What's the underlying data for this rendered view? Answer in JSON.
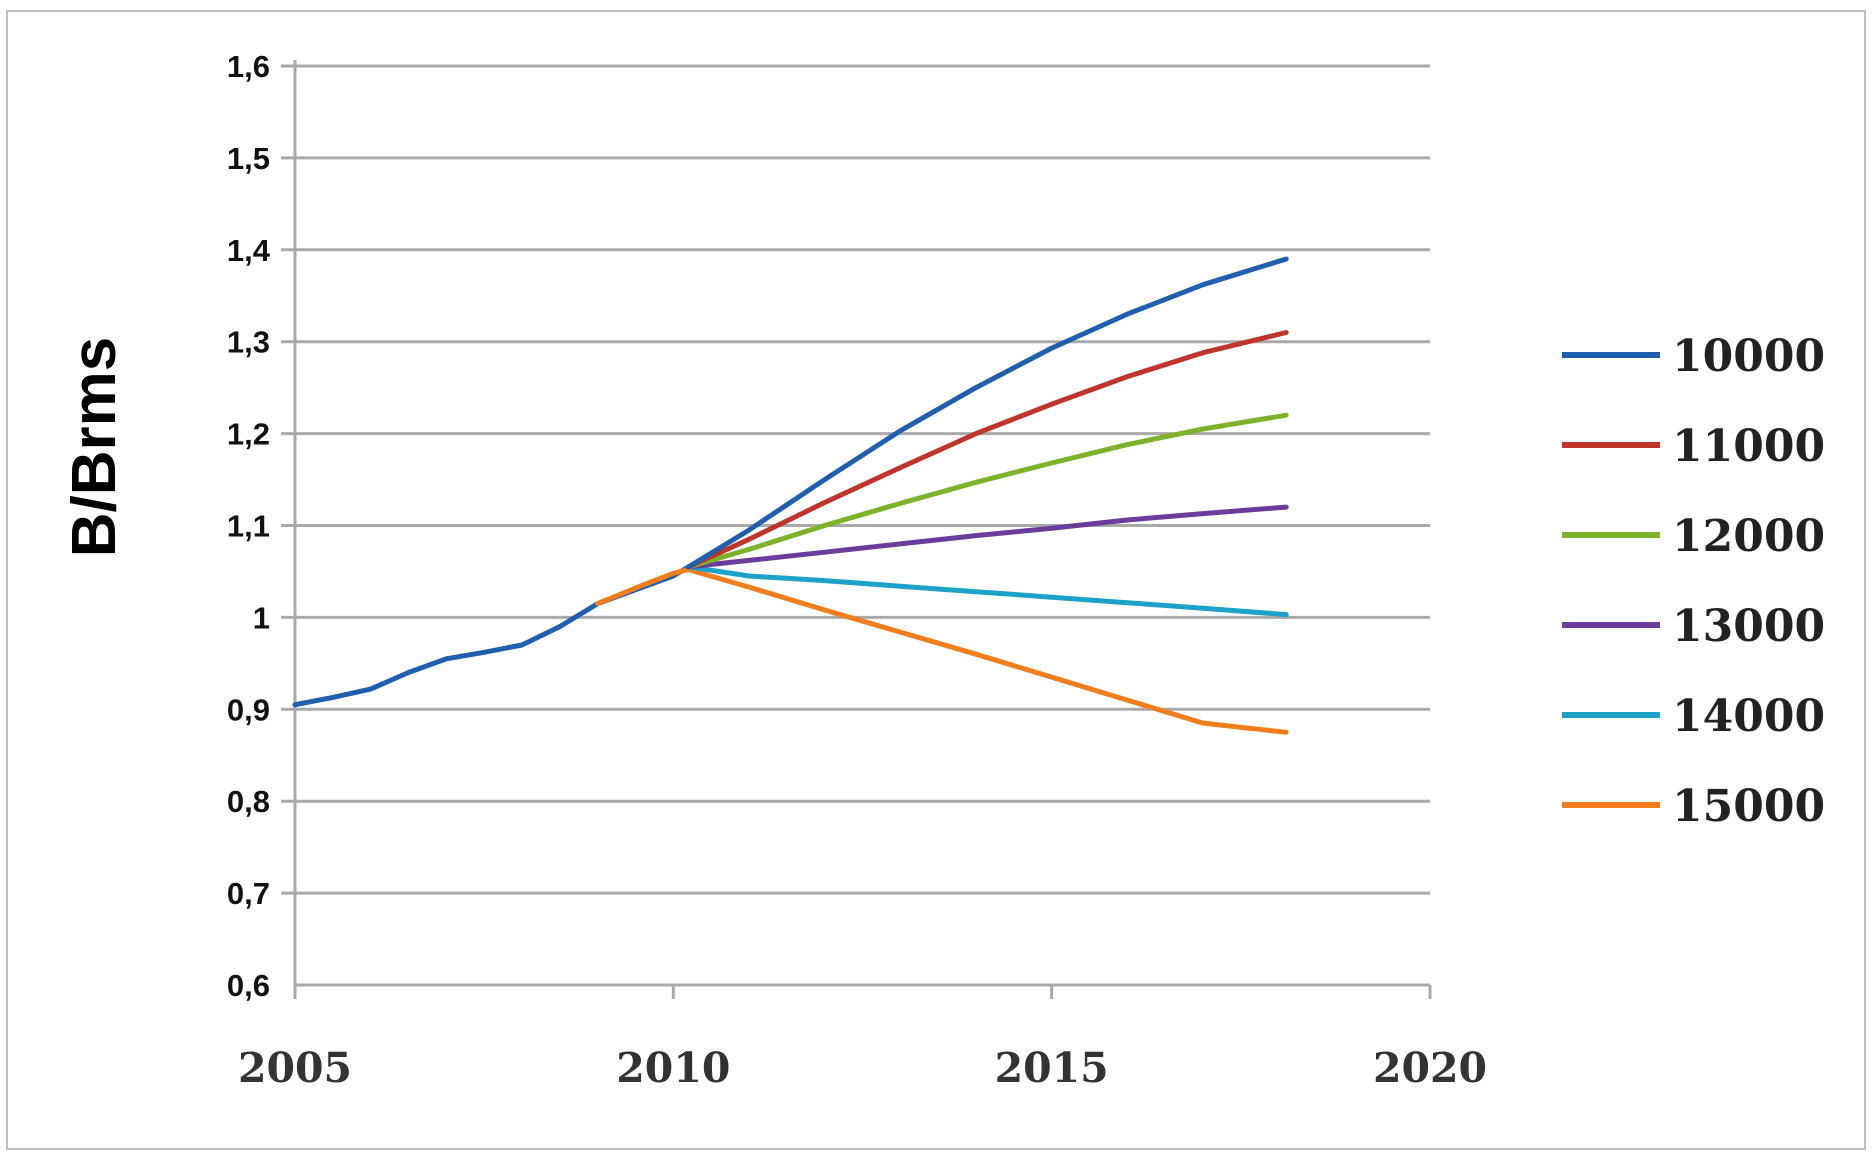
{
  "chart_data": {
    "type": "line",
    "title": "",
    "xlabel": "",
    "ylabel": "B/Brms",
    "xlim": [
      2005,
      2020
    ],
    "ylim": [
      0.6,
      1.6
    ],
    "x_ticks": [
      "2005",
      "2010",
      "2015",
      "2020"
    ],
    "y_ticks": [
      "0,6",
      "0,7",
      "0,8",
      "0,9",
      "1",
      "1,1",
      "1,2",
      "1,3",
      "1,4",
      "1,5",
      "1,6"
    ],
    "grid": "horizontal",
    "legend_position": "right",
    "history": {
      "color": "#1f5fae",
      "x": [
        2005,
        2005.5,
        2006,
        2006.5,
        2007,
        2007.5,
        2008,
        2008.5,
        2009,
        2009.5,
        2010,
        2010.2
      ],
      "y": [
        0.905,
        0.913,
        0.922,
        0.94,
        0.955,
        0.962,
        0.97,
        0.99,
        1.015,
        1.03,
        1.045,
        1.055
      ]
    },
    "series": [
      {
        "name": "10000",
        "color": "#1f5fae",
        "x": [
          2010.2,
          2011,
          2012,
          2013,
          2014,
          2015,
          2016,
          2017,
          2018.1
        ],
        "y": [
          1.055,
          1.095,
          1.15,
          1.203,
          1.25,
          1.293,
          1.33,
          1.362,
          1.39
        ]
      },
      {
        "name": "11000",
        "color": "#c0352b",
        "x": [
          2010.2,
          2011,
          2012,
          2013,
          2014,
          2015,
          2016,
          2017,
          2018.1
        ],
        "y": [
          1.055,
          1.085,
          1.125,
          1.163,
          1.2,
          1.232,
          1.262,
          1.288,
          1.31
        ]
      },
      {
        "name": "12000",
        "color": "#7db32a",
        "x": [
          2010.2,
          2011,
          2012,
          2013,
          2014,
          2015,
          2016,
          2017,
          2018.1
        ],
        "y": [
          1.055,
          1.074,
          1.1,
          1.124,
          1.147,
          1.168,
          1.188,
          1.205,
          1.22
        ]
      },
      {
        "name": "13000",
        "color": "#6a3d9a",
        "x": [
          2010.2,
          2011,
          2012,
          2013,
          2014,
          2015,
          2016,
          2017,
          2018.1
        ],
        "y": [
          1.055,
          1.062,
          1.071,
          1.08,
          1.089,
          1.097,
          1.106,
          1.113,
          1.12
        ]
      },
      {
        "name": "14000",
        "color": "#1ba2c6",
        "x": [
          2010.2,
          2011,
          2012,
          2013,
          2014,
          2015,
          2016,
          2017,
          2018.1
        ],
        "y": [
          1.055,
          1.045,
          1.04,
          1.034,
          1.028,
          1.022,
          1.016,
          1.01,
          1.003
        ]
      },
      {
        "name": "15000",
        "color": "#f07e1c",
        "x": [
          2009,
          2009.5,
          2010,
          2010.2,
          2011,
          2012,
          2013,
          2014,
          2015,
          2016,
          2017,
          2018.1
        ],
        "y": [
          1.015,
          1.032,
          1.048,
          1.052,
          1.033,
          1.008,
          0.984,
          0.96,
          0.935,
          0.91,
          0.885,
          0.875
        ]
      }
    ]
  }
}
